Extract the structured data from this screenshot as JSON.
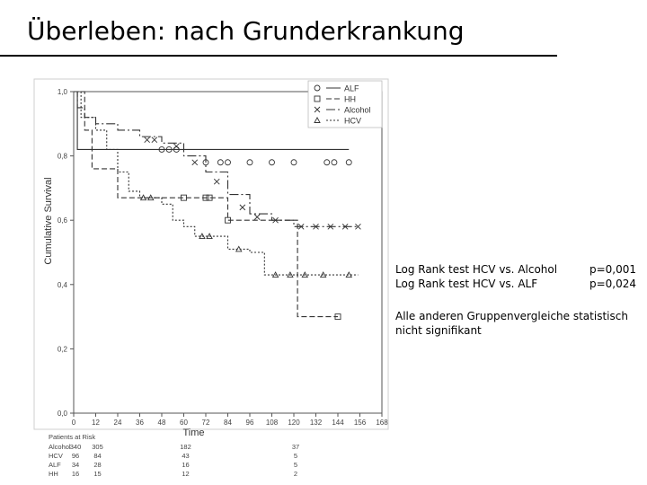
{
  "slide": {
    "title": "Überleben: nach Grunderkrankung"
  },
  "stats": {
    "rows": [
      {
        "label": "Log Rank test HCV vs. Alcohol",
        "p": "p=0,001"
      },
      {
        "label": "Log Rank test HCV vs. ALF",
        "p": "p=0,024"
      }
    ],
    "note": "Alle anderen Gruppenvergleiche statistisch nicht signifikant"
  },
  "chart_data": {
    "type": "line",
    "xlabel": "Time",
    "ylabel": "Cumulative Survival",
    "xlim": [
      0,
      168
    ],
    "ylim": [
      0.0,
      1.0
    ],
    "x_ticks": [
      "0",
      "12",
      "24",
      "36",
      "48",
      "60",
      "72",
      "84",
      "96",
      "108",
      "120",
      "132",
      "144",
      "156",
      "168"
    ],
    "y_ticks": [
      "0,0",
      "0,2",
      "0,4",
      "0,6",
      "0,8",
      "1,0"
    ],
    "legend_position": "top-right",
    "series": [
      {
        "name": "ALF",
        "color": "#333333",
        "dash": "",
        "marker": "circle",
        "points": [
          [
            0,
            1.0
          ],
          [
            2,
            0.82
          ],
          [
            150,
            0.82
          ]
        ],
        "censored": [
          [
            48,
            0.82
          ],
          [
            52,
            0.82
          ],
          [
            56,
            0.82
          ],
          [
            72,
            0.78
          ],
          [
            80,
            0.78
          ],
          [
            84,
            0.78
          ],
          [
            96,
            0.78
          ],
          [
            108,
            0.78
          ],
          [
            120,
            0.78
          ],
          [
            138,
            0.78
          ],
          [
            142,
            0.78
          ],
          [
            150,
            0.78
          ]
        ]
      },
      {
        "name": "HH",
        "color": "#333333",
        "dash": "6,3",
        "marker": "square",
        "points": [
          [
            0,
            1.0
          ],
          [
            6,
            0.88
          ],
          [
            10,
            0.76
          ],
          [
            20,
            0.76
          ],
          [
            24,
            0.67
          ],
          [
            48,
            0.67
          ],
          [
            60,
            0.67
          ],
          [
            84,
            0.67
          ],
          [
            84,
            0.6
          ],
          [
            118,
            0.6
          ],
          [
            122,
            0.3
          ],
          [
            144,
            0.3
          ]
        ],
        "censored": [
          [
            60,
            0.67
          ],
          [
            72,
            0.67
          ],
          [
            74,
            0.67
          ],
          [
            84,
            0.6
          ],
          [
            144,
            0.3
          ]
        ]
      },
      {
        "name": "Alcohol",
        "color": "#333333",
        "dash": "10,3,2,3",
        "marker": "x",
        "points": [
          [
            0,
            1.0
          ],
          [
            2,
            0.95
          ],
          [
            6,
            0.92
          ],
          [
            12,
            0.9
          ],
          [
            24,
            0.88
          ],
          [
            36,
            0.86
          ],
          [
            48,
            0.84
          ],
          [
            60,
            0.8
          ],
          [
            72,
            0.75
          ],
          [
            84,
            0.68
          ],
          [
            96,
            0.62
          ],
          [
            108,
            0.6
          ],
          [
            120,
            0.58
          ],
          [
            130,
            0.58
          ],
          [
            155,
            0.58
          ]
        ],
        "censored": [
          [
            40,
            0.85
          ],
          [
            44,
            0.85
          ],
          [
            56,
            0.83
          ],
          [
            66,
            0.78
          ],
          [
            78,
            0.72
          ],
          [
            92,
            0.64
          ],
          [
            100,
            0.61
          ],
          [
            110,
            0.6
          ],
          [
            124,
            0.58
          ],
          [
            132,
            0.58
          ],
          [
            140,
            0.58
          ],
          [
            148,
            0.58
          ],
          [
            155,
            0.58
          ]
        ]
      },
      {
        "name": "HCV",
        "color": "#333333",
        "dash": "2,2",
        "marker": "triangle",
        "points": [
          [
            0,
            1.0
          ],
          [
            4,
            0.92
          ],
          [
            12,
            0.88
          ],
          [
            18,
            0.82
          ],
          [
            24,
            0.75
          ],
          [
            30,
            0.69
          ],
          [
            36,
            0.67
          ],
          [
            48,
            0.65
          ],
          [
            54,
            0.6
          ],
          [
            60,
            0.58
          ],
          [
            66,
            0.55
          ],
          [
            78,
            0.55
          ],
          [
            84,
            0.51
          ],
          [
            96,
            0.5
          ],
          [
            104,
            0.43
          ],
          [
            120,
            0.43
          ],
          [
            155,
            0.43
          ]
        ],
        "censored": [
          [
            38,
            0.67
          ],
          [
            42,
            0.67
          ],
          [
            70,
            0.55
          ],
          [
            74,
            0.55
          ],
          [
            90,
            0.51
          ],
          [
            110,
            0.43
          ],
          [
            118,
            0.43
          ],
          [
            126,
            0.43
          ],
          [
            136,
            0.43
          ],
          [
            150,
            0.43
          ]
        ]
      }
    ],
    "risk_table": {
      "header": "Patients at Risk",
      "times": [
        0,
        12,
        60,
        120
      ],
      "rows": [
        {
          "label": "Alcohol",
          "values": [
            "340",
            "305",
            "182",
            "37"
          ]
        },
        {
          "label": "HCV",
          "values": [
            "96",
            "84",
            "43",
            "5"
          ]
        },
        {
          "label": "ALF",
          "values": [
            "34",
            "28",
            "16",
            "5"
          ]
        },
        {
          "label": "HH",
          "values": [
            "16",
            "15",
            "12",
            "2"
          ]
        }
      ]
    }
  }
}
